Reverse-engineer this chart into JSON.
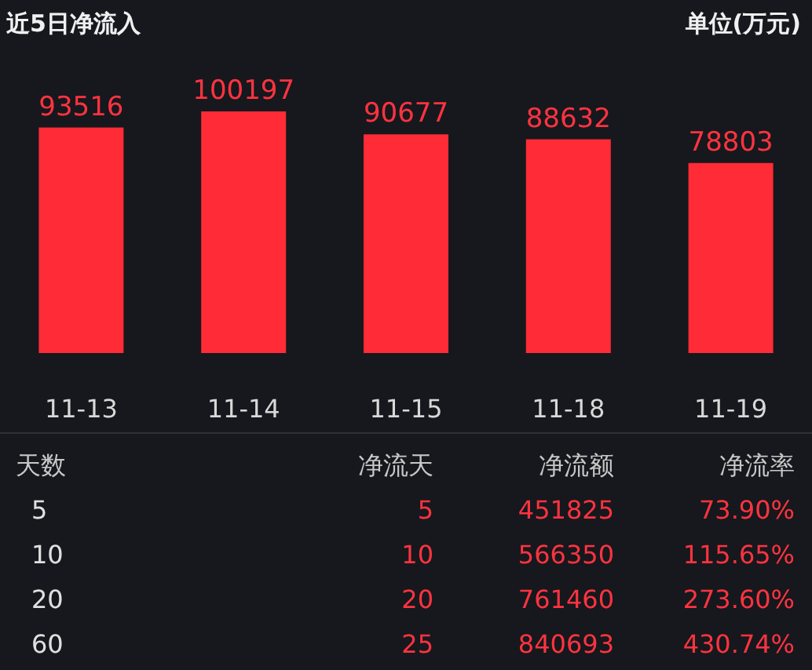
{
  "chart_data": {
    "type": "bar",
    "title": "近5日净流入",
    "subtitle": "单位(万元)",
    "categories": [
      "11-13",
      "11-14",
      "11-15",
      "11-18",
      "11-19"
    ],
    "values": [
      93516,
      100197,
      90677,
      88632,
      78803
    ],
    "color": "#ff2b37",
    "data_labels": true,
    "annotations": [
      "天数",
      "净流天",
      "净流额",
      "净流率",
      "5",
      "5",
      "451825",
      "73.90%",
      "10",
      "10",
      "566350",
      "115.65%",
      "20",
      "20",
      "761460",
      "273.60%",
      "60",
      "25",
      "840693",
      "430.74%"
    ]
  }
}
